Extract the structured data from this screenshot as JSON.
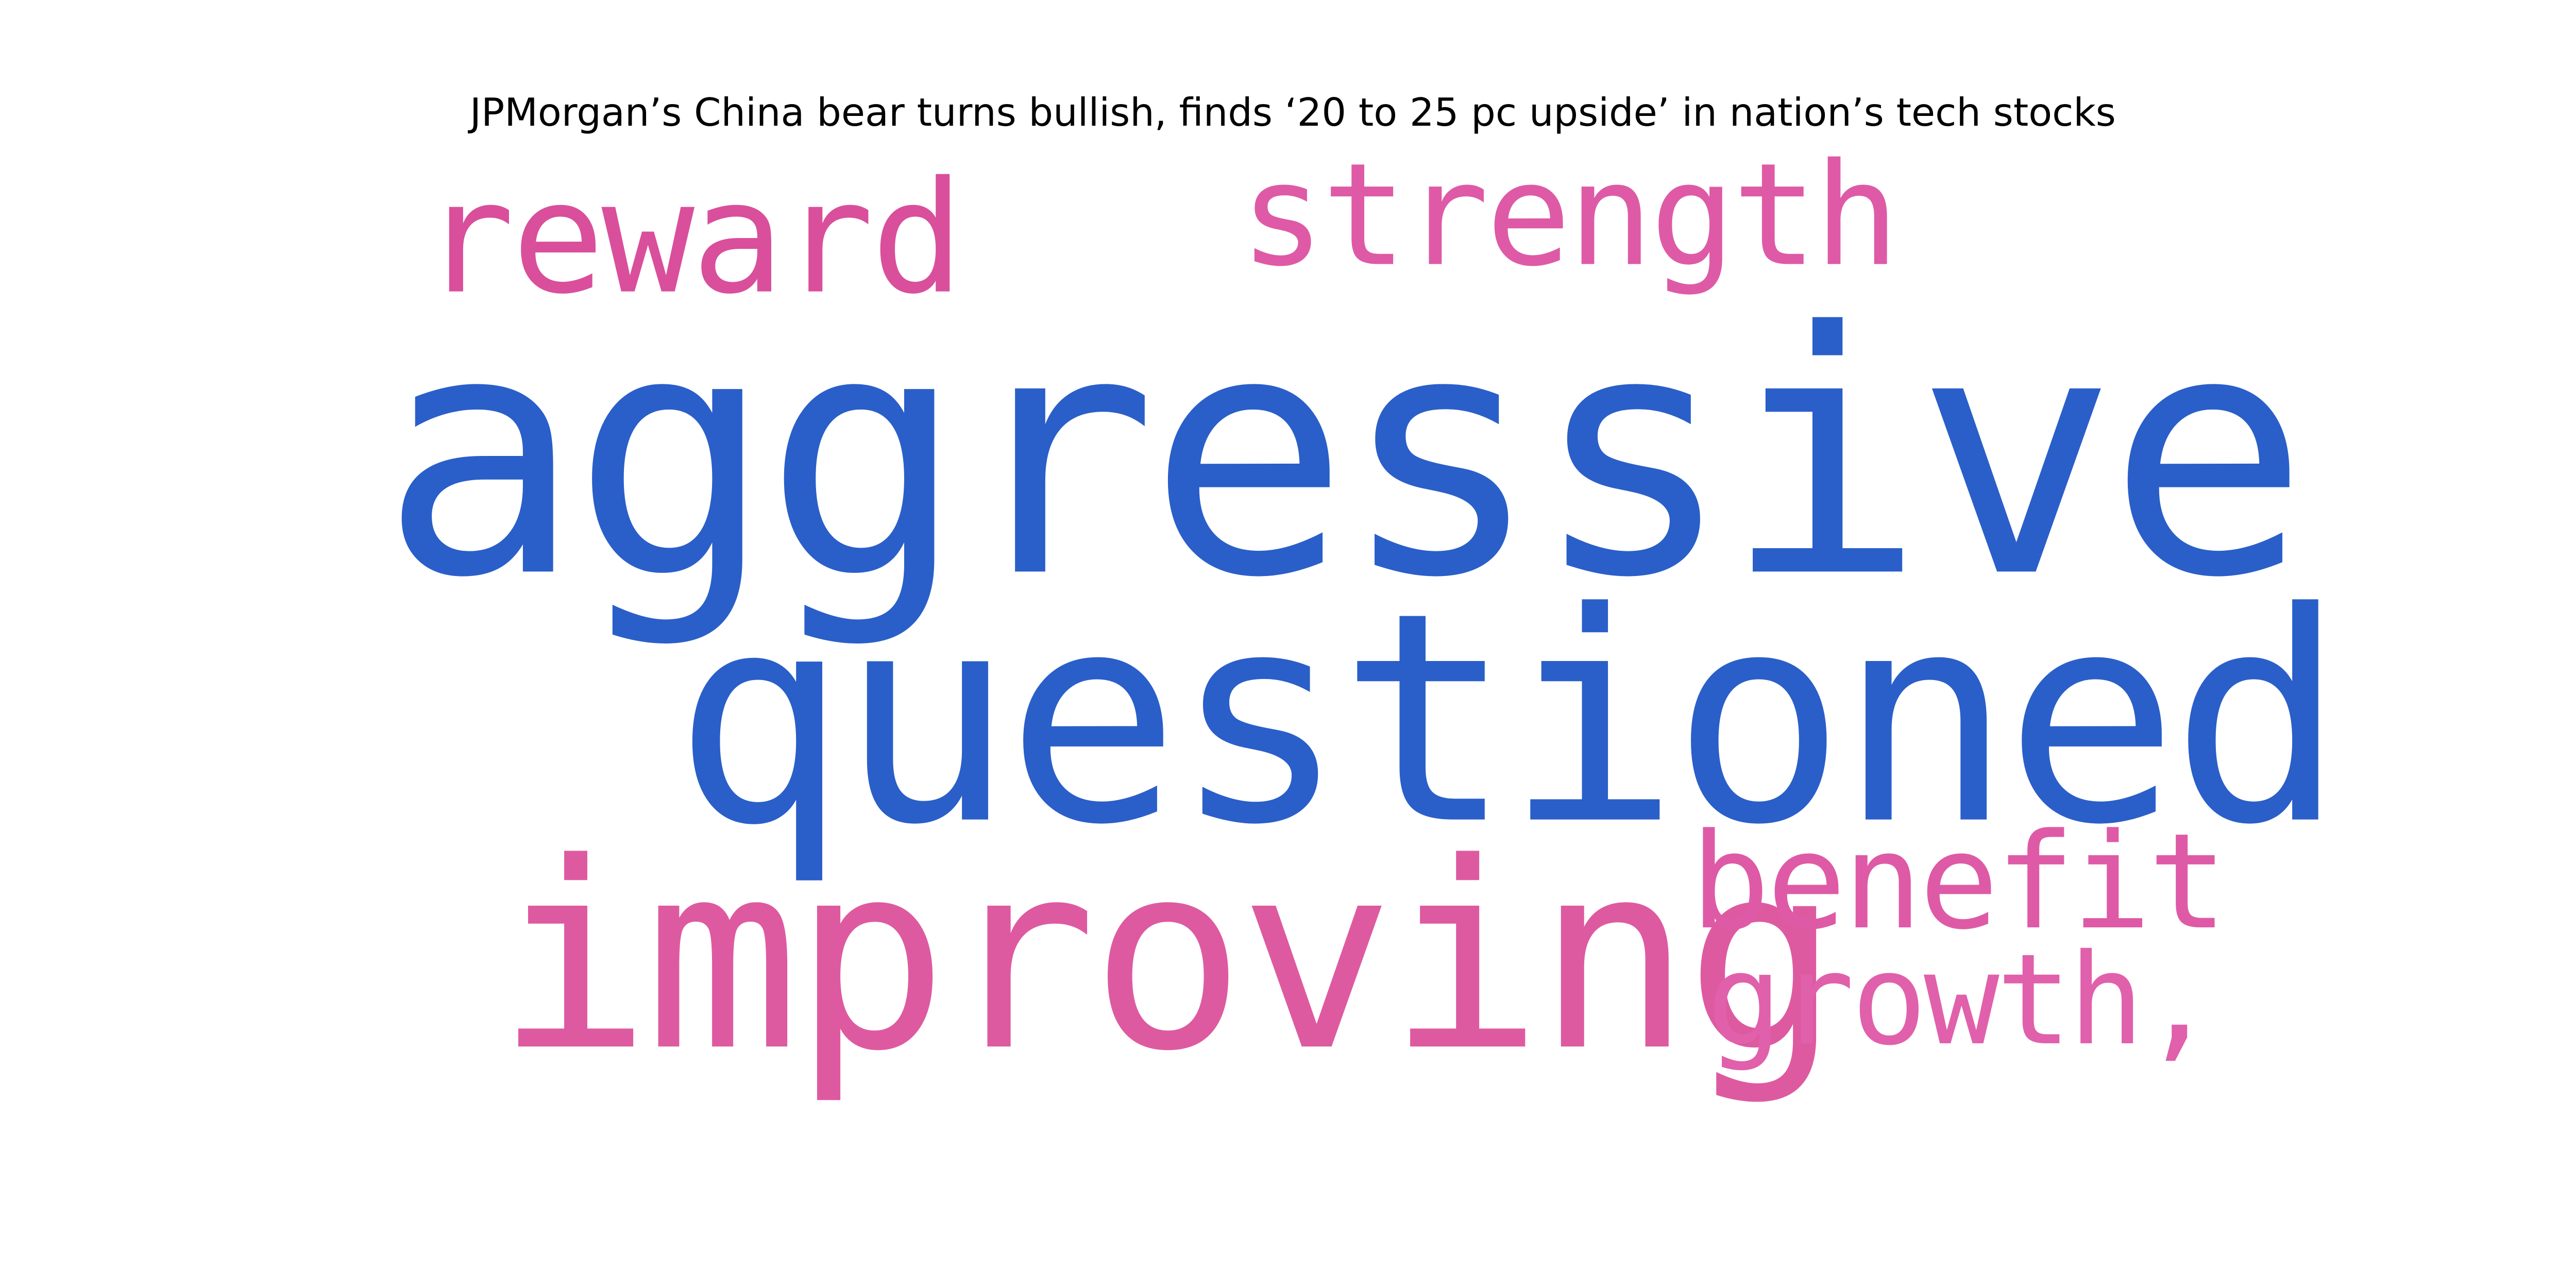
{
  "title": "JPMorgan’s China bear turns bullish, finds ‘20 to 25 pc upside’ in nation’s tech stocks",
  "colors": {
    "blue": "#2a5fc9",
    "pink": "#d94f9b",
    "pink_light": "#e060a5"
  },
  "words": [
    {
      "text": "aggressive",
      "color": "#2a5fc9"
    },
    {
      "text": "questioned",
      "color": "#2a5fc9"
    },
    {
      "text": "improving",
      "color": "#de5aa0"
    },
    {
      "text": "reward",
      "color": "#d94f9b"
    },
    {
      "text": "strength",
      "color": "#de5aa6"
    },
    {
      "text": "benefit",
      "color": "#de5aa6"
    },
    {
      "text": "growth,",
      "color": "#e060ab"
    }
  ]
}
